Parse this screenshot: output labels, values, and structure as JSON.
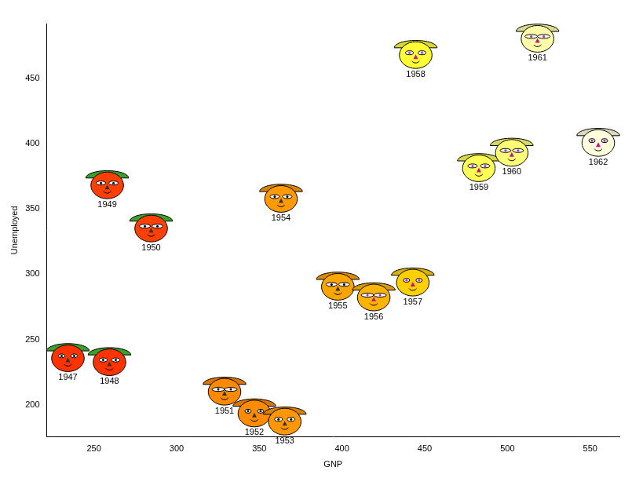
{
  "chart_data": {
    "type": "scatter",
    "marker": "face",
    "x_label": "GNP",
    "y_label": "Unemployed",
    "labels": [
      "1947",
      "1948",
      "1949",
      "1950",
      "1951",
      "1952",
      "1953",
      "1954",
      "1955",
      "1956",
      "1957",
      "1958",
      "1959",
      "1960",
      "1961",
      "1962"
    ],
    "x": [
      234.289,
      259.426,
      258.054,
      284.599,
      328.975,
      346.999,
      365.385,
      363.112,
      397.469,
      419.18,
      442.769,
      444.546,
      482.704,
      502.601,
      518.173,
      554.894
    ],
    "values": [
      235.6,
      232.5,
      368.2,
      335.1,
      209.9,
      193.2,
      187.0,
      357.8,
      290.4,
      282.2,
      293.6,
      468.1,
      381.3,
      393.1,
      480.6,
      400.7
    ],
    "colors": [
      "#ff3300",
      "#ff3300",
      "#ff4000",
      "#ff4000",
      "#ff8a00",
      "#ff8c00",
      "#ff9800",
      "#ff9a00",
      "#ffa500",
      "#ffb400",
      "#ffd000",
      "#ffff33",
      "#ffff55",
      "#ffff77",
      "#ffffaa",
      "#ffffdd"
    ],
    "xlim": [
      221.5,
      567.7
    ],
    "ylim": [
      175.3,
      492.3
    ],
    "xticks": [
      250,
      300,
      350,
      400,
      450,
      500,
      550
    ],
    "yticks": [
      200,
      250,
      300,
      350,
      400,
      450
    ],
    "grid": false
  }
}
